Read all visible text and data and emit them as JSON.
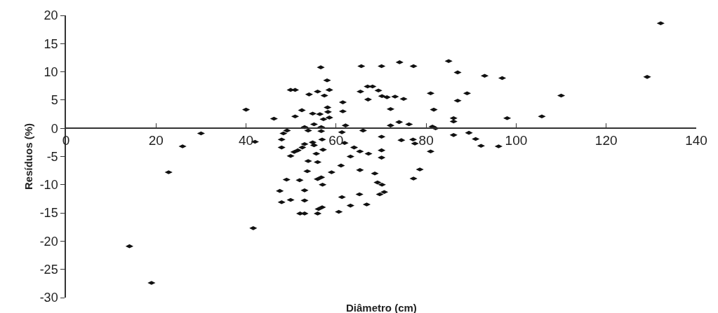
{
  "chart_data": {
    "type": "scatter",
    "xlabel": "Diâmetro (cm)",
    "ylabel": "Resíduos (%)",
    "marker": "diamond",
    "xlim": [
      0,
      140
    ],
    "xticks": [
      0,
      20,
      40,
      60,
      80,
      100,
      120,
      140
    ],
    "ylim": [
      -30,
      20
    ],
    "yticks": [
      -30,
      -25,
      -20,
      -15,
      -10,
      -5,
      0,
      5,
      10,
      15,
      20
    ],
    "series": [
      {
        "color": "#111111",
        "x": [
          40.0,
          46.2,
          30.0,
          25.9,
          42.0,
          47.9,
          47.9,
          49.9,
          22.8,
          49.0,
          47.5,
          47.9,
          49.9,
          41.6,
          14.1,
          19.0,
          56.6,
          65.6,
          70.1,
          74.1,
          58.0,
          49.9,
          50.9,
          54.0,
          55.9,
          58.5,
          57.4,
          65.4,
          67.0,
          68.1,
          69.4,
          70.2,
          71.3,
          73.1,
          75.0,
          67.1,
          61.5,
          58.1,
          52.4,
          61.5,
          58.2,
          54.8,
          56.4,
          50.9,
          58.5,
          57.2,
          72.1,
          55.1,
          62.1,
          72.1,
          74.0,
          76.2,
          53.0,
          53.8,
          56.7,
          49.1,
          48.3,
          56.7,
          61.3,
          66.0,
          70.1,
          74.5,
          56.9,
          54.8,
          55.1,
          53.0,
          52.5,
          51.5,
          50.7,
          57.1,
          55.6,
          61.9,
          64.0,
          65.3,
          67.2,
          70.1,
          70.1,
          63.2,
          53.8,
          55.9,
          61.1,
          53.6,
          59.0,
          65.3,
          68.6,
          51.9,
          55.9,
          56.7,
          57.0,
          69.2,
          70.2,
          53.0,
          69.7,
          70.7,
          53.0,
          61.3,
          65.2,
          56.9,
          56.1,
          63.2,
          66.8,
          52.0,
          53.0,
          55.9,
          60.6,
          77.2,
          85.0,
          87.0,
          93.0,
          96.9,
          81.0,
          89.1,
          87.0,
          81.7,
          86.1,
          86.1,
          98.0,
          81.4,
          82.1,
          86.1,
          89.5,
          91.0,
          92.2,
          96.1,
          77.1,
          77.5,
          81.0,
          78.6,
          77.2,
          105.7,
          110.0,
          129.1,
          132.1
        ],
        "values": [
          3.3,
          1.7,
          -0.9,
          -3.2,
          -2.4,
          -2.0,
          -3.4,
          -4.9,
          -7.8,
          -9.1,
          -11.1,
          -13.1,
          -12.7,
          -17.7,
          -20.9,
          -27.4,
          10.8,
          11.0,
          11.0,
          11.7,
          8.5,
          6.8,
          6.8,
          6.0,
          6.5,
          6.8,
          5.8,
          6.5,
          7.4,
          7.4,
          6.7,
          5.7,
          5.5,
          5.6,
          5.2,
          5.1,
          4.6,
          3.7,
          3.2,
          3.0,
          2.9,
          2.6,
          2.5,
          2.1,
          1.9,
          1.6,
          3.4,
          0.7,
          0.5,
          0.5,
          1.1,
          0.7,
          0.2,
          -0.4,
          0.2,
          -0.4,
          -0.9,
          -0.5,
          -0.7,
          -0.4,
          -1.5,
          -2.1,
          -2.0,
          -2.5,
          -3.0,
          -2.8,
          -3.4,
          -3.9,
          -4.2,
          -3.8,
          -4.5,
          -2.6,
          -3.4,
          -4.1,
          -4.5,
          -3.9,
          -5.2,
          -5.0,
          -5.8,
          -6.0,
          -6.6,
          -7.6,
          -7.8,
          -7.4,
          -8.0,
          -9.2,
          -9.0,
          -8.7,
          -10.0,
          -9.6,
          -10.0,
          -11.0,
          -11.7,
          -11.3,
          -12.8,
          -12.2,
          -11.7,
          -14.0,
          -14.3,
          -13.7,
          -13.5,
          -15.1,
          -15.1,
          -15.1,
          -14.8,
          11.0,
          11.9,
          9.9,
          9.3,
          8.9,
          6.2,
          6.2,
          4.9,
          3.3,
          1.8,
          1.2,
          1.8,
          0.3,
          0.0,
          -1.2,
          -0.8,
          -1.9,
          -3.1,
          -3.2,
          -2.0,
          -2.7,
          -4.1,
          -7.3,
          -8.9,
          2.1,
          5.8,
          9.1,
          18.6
        ]
      }
    ]
  }
}
